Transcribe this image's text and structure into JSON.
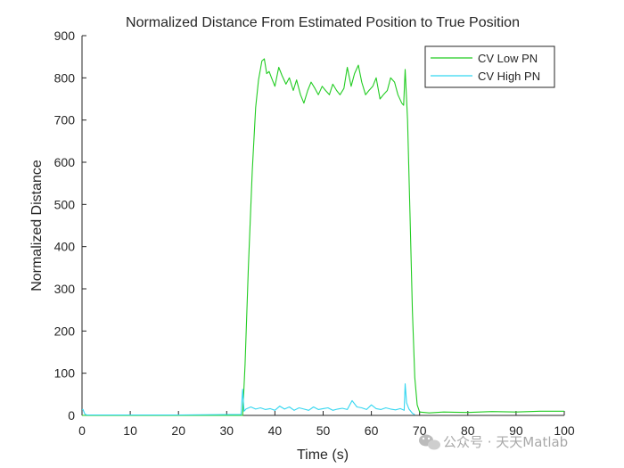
{
  "chart_data": {
    "type": "line",
    "title": "Normalized Distance From Estimated Position to True Position",
    "xlabel": "Time (s)",
    "ylabel": "Normalized Distance",
    "xlim": [
      0,
      100
    ],
    "ylim": [
      0,
      900
    ],
    "xticks": [
      0,
      10,
      20,
      30,
      40,
      50,
      60,
      70,
      80,
      90,
      100
    ],
    "yticks": [
      0,
      100,
      200,
      300,
      400,
      500,
      600,
      700,
      800,
      900
    ],
    "grid": false,
    "legend_location": "top-right",
    "series": [
      {
        "name": "CV Low PN",
        "color": "#22cc22",
        "x": [
          0,
          33.3,
          33.8,
          34.5,
          35.3,
          36,
          36.6,
          37.3,
          37.8,
          38.3,
          38.8,
          39.3,
          40,
          40.8,
          41.5,
          42.3,
          43,
          43.8,
          44.5,
          45.3,
          46,
          46.8,
          47.5,
          48.3,
          49,
          49.8,
          50.5,
          51.3,
          52,
          52.8,
          53.5,
          54.3,
          55,
          55.8,
          56.5,
          57.3,
          58,
          58.8,
          59.5,
          60.3,
          61,
          61.8,
          62.5,
          63.3,
          64,
          64.8,
          65.5,
          66.3,
          66.7,
          67,
          67.5,
          68,
          68.5,
          69,
          69.5,
          70,
          72,
          75,
          80,
          85,
          90,
          95,
          100
        ],
        "y": [
          0,
          0,
          120,
          350,
          580,
          730,
          795,
          840,
          845,
          810,
          815,
          800,
          780,
          825,
          805,
          785,
          800,
          770,
          795,
          760,
          740,
          770,
          790,
          775,
          760,
          780,
          770,
          760,
          785,
          770,
          760,
          775,
          825,
          780,
          810,
          830,
          790,
          760,
          770,
          780,
          800,
          750,
          760,
          770,
          800,
          790,
          760,
          740,
          735,
          820,
          700,
          480,
          250,
          90,
          25,
          8,
          6,
          8,
          7,
          9,
          8,
          10,
          10
        ]
      },
      {
        "name": "CV High PN",
        "color": "#33d6f0",
        "x": [
          0,
          0.2,
          0.6,
          1,
          10,
          20,
          30,
          33,
          33.3,
          33.6,
          34,
          35,
          36,
          37,
          38,
          39,
          40,
          41,
          42,
          43,
          44,
          45,
          46,
          47,
          48,
          49,
          50,
          51,
          52,
          53,
          54,
          55,
          56,
          57,
          58,
          59,
          60,
          61,
          62,
          63,
          64,
          65,
          66,
          66.8,
          67,
          67.3,
          67.8,
          68.5,
          69
        ],
        "y": [
          14,
          14,
          3,
          1,
          1,
          1,
          2,
          2,
          62,
          10,
          15,
          20,
          15,
          18,
          14,
          16,
          12,
          22,
          15,
          20,
          12,
          18,
          15,
          12,
          20,
          14,
          16,
          18,
          12,
          15,
          17,
          14,
          35,
          20,
          18,
          14,
          25,
          16,
          14,
          18,
          15,
          13,
          16,
          12,
          75,
          30,
          15,
          5,
          2
        ]
      }
    ]
  },
  "watermark": {
    "text": "公众号 · 天天Matlab",
    "icon": "wechat-icon"
  }
}
